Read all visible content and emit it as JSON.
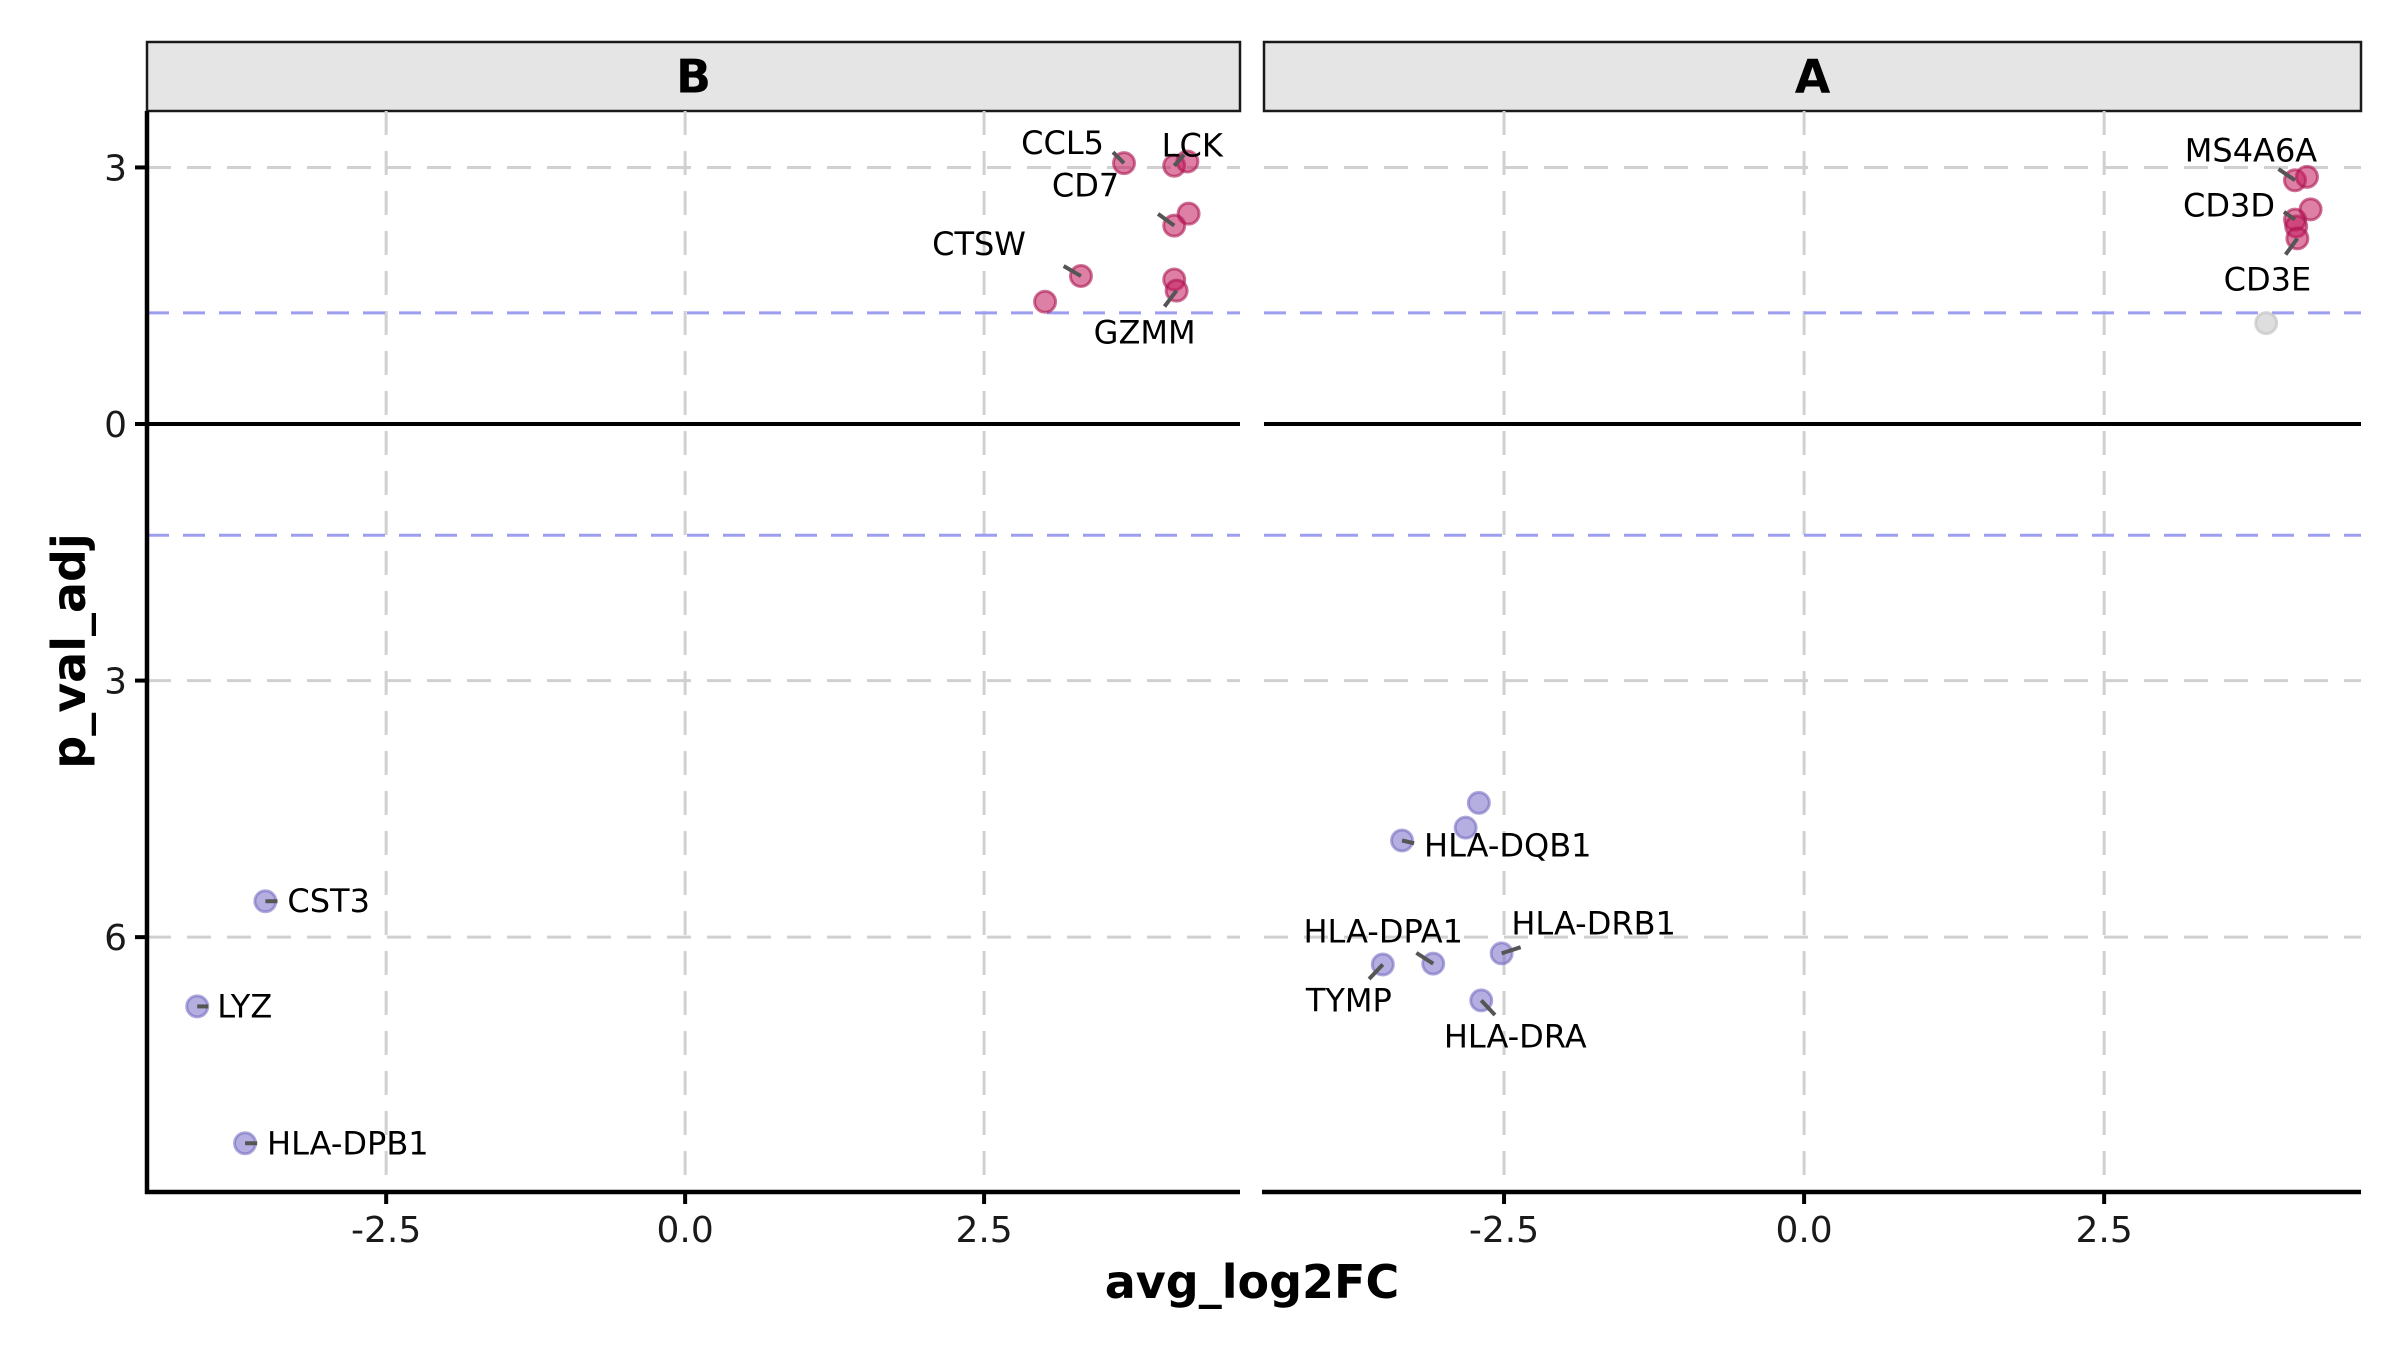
{
  "chart_data": {
    "type": "scatter",
    "subtype": "faceted-volcano",
    "xlabel": "avg_log2FC",
    "ylabel": "p_val_adj",
    "xlim": [
      -4.5,
      4.64
    ],
    "ylim": [
      -8.98,
      3.66
    ],
    "x_ticks": [
      -2.5,
      0.0,
      2.5
    ],
    "x_tick_labels": [
      "-2.5",
      "0.0",
      "2.5"
    ],
    "y_ticks": [
      3,
      0,
      -3,
      -6
    ],
    "y_tick_labels": [
      "3",
      "0",
      "3",
      "6"
    ],
    "grid": true,
    "reference_lines": {
      "zero": 0,
      "significance": [
        1.3,
        -1.3
      ]
    },
    "colors": {
      "up": "#C2185B",
      "down": "#7B6FC6",
      "not_significant": "#C8C8C8",
      "threshold": "#9E9EF0"
    },
    "legend": "none",
    "facets": [
      {
        "title": "B",
        "points": [
          {
            "x": 3.67,
            "y": 3.05,
            "group": "up",
            "label": "CCL5"
          },
          {
            "x": 4.09,
            "y": 3.02,
            "group": "up",
            "label": "LCK"
          },
          {
            "x": 4.2,
            "y": 3.07,
            "group": "up",
            "label": ""
          },
          {
            "x": 4.21,
            "y": 2.46,
            "group": "up",
            "label": ""
          },
          {
            "x": 4.09,
            "y": 2.32,
            "group": "up",
            "label": "CD7"
          },
          {
            "x": 3.31,
            "y": 1.73,
            "group": "up",
            "label": "CTSW"
          },
          {
            "x": 3.01,
            "y": 1.43,
            "group": "up",
            "label": ""
          },
          {
            "x": 4.09,
            "y": 1.69,
            "group": "up",
            "label": ""
          },
          {
            "x": 4.11,
            "y": 1.56,
            "group": "up",
            "label": "GZMM"
          },
          {
            "x": -3.51,
            "y": -5.58,
            "group": "down",
            "label": "CST3"
          },
          {
            "x": -4.08,
            "y": -6.81,
            "group": "down",
            "label": "LYZ"
          },
          {
            "x": -3.68,
            "y": -8.41,
            "group": "down",
            "label": "HLA-DPB1"
          }
        ]
      },
      {
        "title": "A",
        "points": [
          {
            "x": 4.09,
            "y": 2.85,
            "group": "up",
            "label": "MS4A6A"
          },
          {
            "x": 4.19,
            "y": 2.89,
            "group": "up",
            "label": ""
          },
          {
            "x": 4.22,
            "y": 2.51,
            "group": "up",
            "label": ""
          },
          {
            "x": 4.09,
            "y": 2.39,
            "group": "up",
            "label": "CD3D"
          },
          {
            "x": 4.1,
            "y": 2.31,
            "group": "up",
            "label": ""
          },
          {
            "x": 4.11,
            "y": 2.17,
            "group": "up",
            "label": "CD3E"
          },
          {
            "x": 3.85,
            "y": 1.18,
            "group": "not_significant",
            "label": ""
          },
          {
            "x": -2.71,
            "y": -4.43,
            "group": "down",
            "label": ""
          },
          {
            "x": -2.82,
            "y": -4.72,
            "group": "down",
            "label": ""
          },
          {
            "x": -3.35,
            "y": -4.87,
            "group": "down",
            "label": "HLA-DQB1"
          },
          {
            "x": -3.51,
            "y": -6.32,
            "group": "down",
            "label": "TYMP"
          },
          {
            "x": -3.09,
            "y": -6.31,
            "group": "down",
            "label": "HLA-DPA1"
          },
          {
            "x": -2.52,
            "y": -6.19,
            "group": "down",
            "label": "HLA-DRB1"
          },
          {
            "x": -2.69,
            "y": -6.74,
            "group": "down",
            "label": "HLA-DRA"
          }
        ]
      }
    ]
  }
}
